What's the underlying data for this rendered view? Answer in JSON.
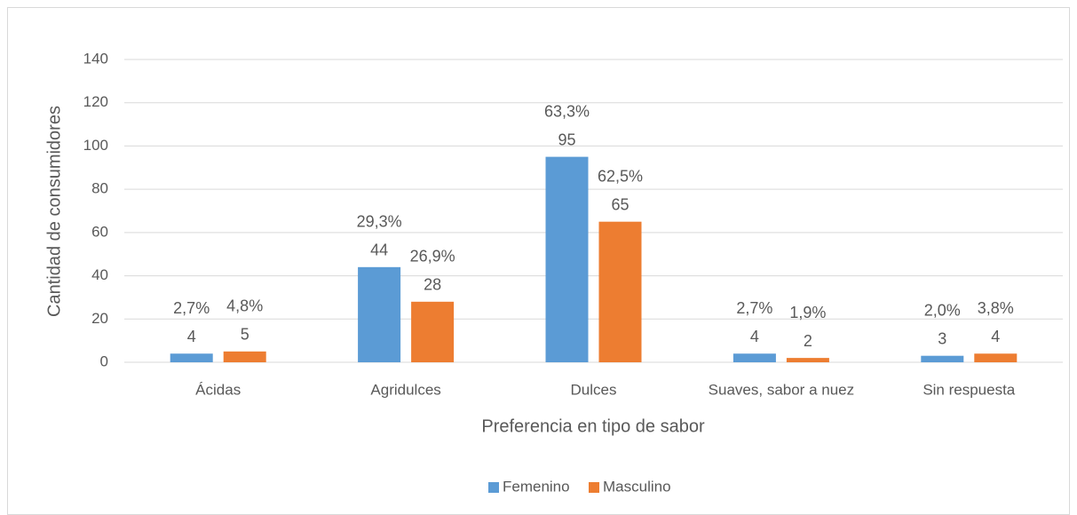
{
  "chart_data": {
    "type": "bar",
    "x_label": "Preferencia en tipo de sabor",
    "y_label": "Cantidad de consumidores",
    "categories": [
      "Ácidas",
      "Agridulces",
      "Dulces",
      "Suaves, sabor a nuez",
      "Sin respuesta"
    ],
    "series": [
      {
        "name": "Femenino",
        "color": "#5b9bd5",
        "values": [
          4,
          44,
          95,
          4,
          3
        ],
        "percent_labels": [
          "2,7%",
          "29,3%",
          "63,3%",
          "2,7%",
          "2,0%"
        ]
      },
      {
        "name": "Masculino",
        "color": "#ed7d31",
        "values": [
          5,
          28,
          65,
          2,
          4
        ],
        "percent_labels": [
          "4,8%",
          "26,9%",
          "62,5%",
          "1,9%",
          "3,8%"
        ]
      }
    ],
    "ylim": [
      0,
      140
    ],
    "yticks": [
      0,
      20,
      40,
      60,
      80,
      100,
      120,
      140
    ],
    "grid": true,
    "legend": "bottom"
  }
}
